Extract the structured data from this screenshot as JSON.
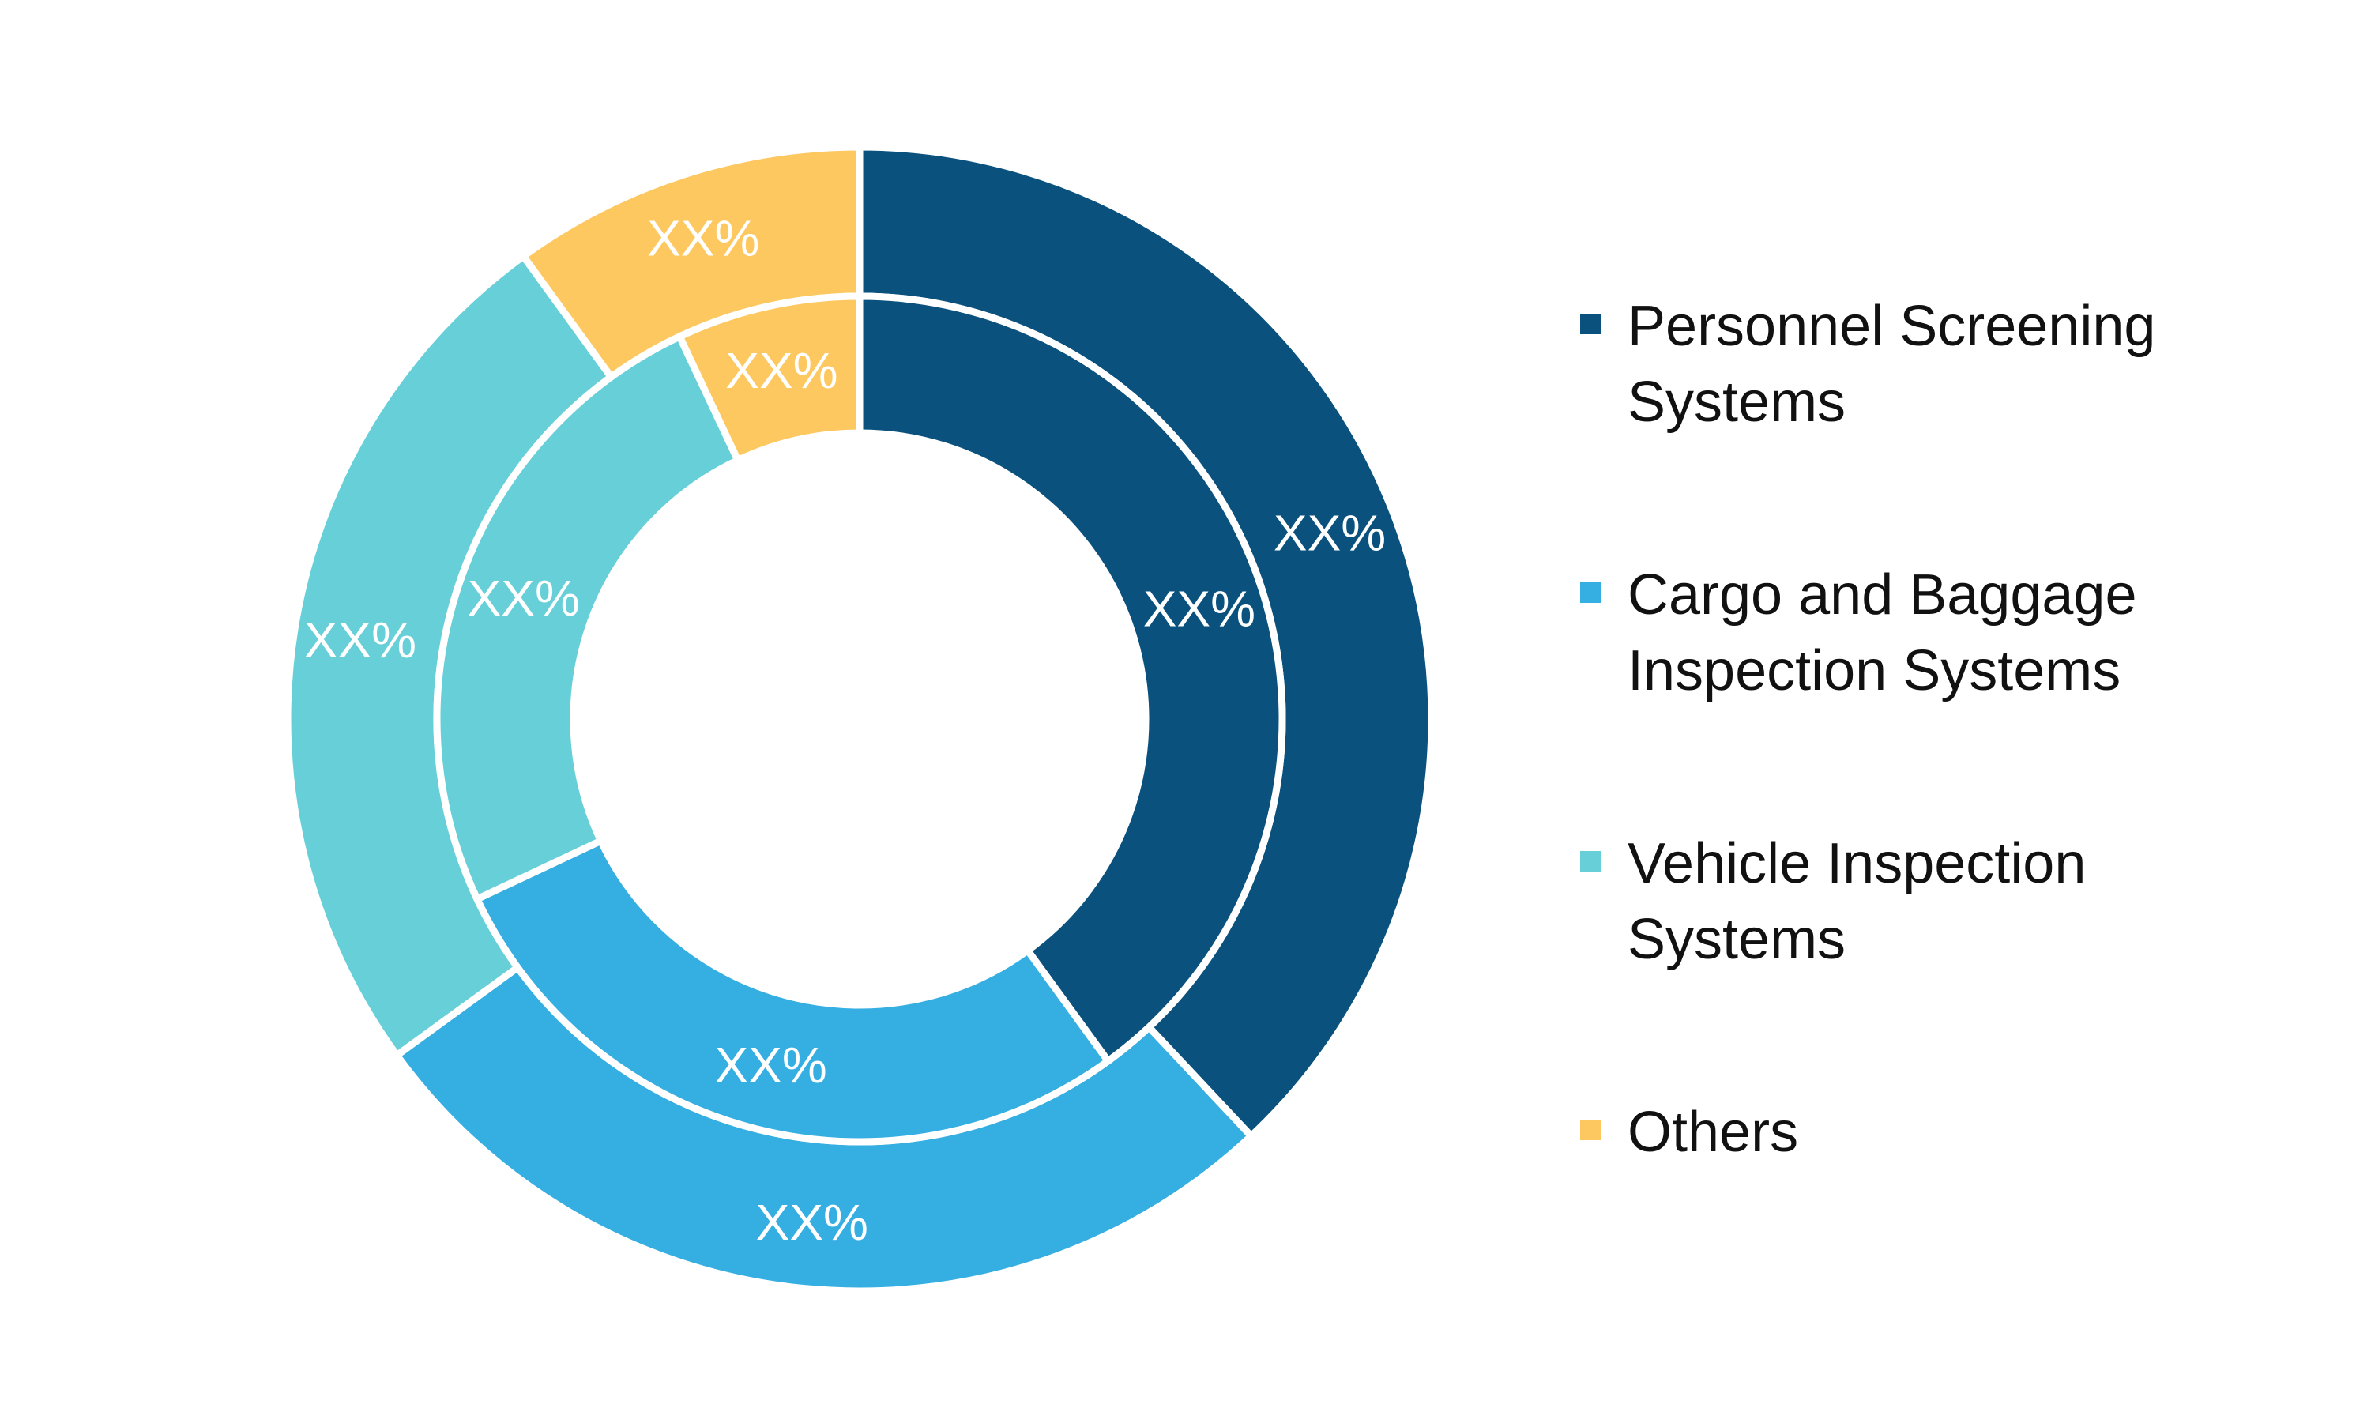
{
  "chart_data": {
    "type": "pie",
    "subtype": "nested-donut",
    "title": "",
    "legend_position": "right",
    "categories": [
      "Personnel Screening Systems",
      "Cargo and Baggage Inspection Systems",
      "Vehicle Inspection Systems",
      "Others"
    ],
    "colors": [
      "#0a527d",
      "#35aee2",
      "#66cfd8",
      "#fec861"
    ],
    "series": [
      {
        "ring": "outer",
        "values": [
          38,
          27,
          25,
          10
        ],
        "labels": [
          "XX%",
          "XX%",
          "XX%",
          "XX%"
        ]
      },
      {
        "ring": "inner",
        "values": [
          40,
          28,
          25,
          7
        ],
        "labels": [
          "XX%",
          "XX%",
          "XX%",
          "XX%"
        ]
      }
    ]
  },
  "legend": {
    "items": [
      {
        "line1": "Personnel Screening",
        "line2": "Systems",
        "color": "#0a527d"
      },
      {
        "line1": "Cargo and Baggage",
        "line2": "Inspection Systems",
        "color": "#35aee2"
      },
      {
        "line1": "Vehicle Inspection",
        "line2": "Systems",
        "color": "#66cfd8"
      },
      {
        "line1": "Others",
        "line2": "",
        "color": "#fec861"
      }
    ]
  }
}
